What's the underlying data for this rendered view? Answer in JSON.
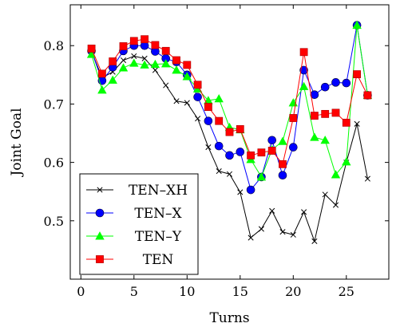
{
  "chart_data": {
    "type": "line",
    "xlabel": "Turns",
    "ylabel": "Joint Goal",
    "xlim": [
      -1,
      29
    ],
    "ylim": [
      0.4,
      0.87
    ],
    "xticks": [
      0,
      5,
      10,
      15,
      20,
      25
    ],
    "yticks": [
      0.5,
      0.6,
      0.7,
      0.8
    ],
    "xtick_labels": [
      "0",
      "5",
      "10",
      "15",
      "20",
      "25"
    ],
    "ytick_labels": [
      "0.5",
      "0.6",
      "0.7",
      "0.8"
    ],
    "grid": false,
    "legend_position": "bottom-left",
    "x": [
      1,
      2,
      3,
      4,
      5,
      6,
      7,
      8,
      9,
      10,
      11,
      12,
      13,
      14,
      15,
      16,
      17,
      18,
      19,
      20,
      21,
      22,
      23,
      24,
      25,
      26,
      27
    ],
    "series": [
      {
        "name": "TEN–XH",
        "color": "#000000",
        "marker": "x",
        "values": [
          0.79,
          0.745,
          0.755,
          0.775,
          0.782,
          0.778,
          0.758,
          0.732,
          0.705,
          0.702,
          0.675,
          0.626,
          0.585,
          0.58,
          0.549,
          0.471,
          0.486,
          0.517,
          0.481,
          0.476,
          0.515,
          0.465,
          0.545,
          0.527,
          0.6,
          0.666,
          0.572
        ]
      },
      {
        "name": "TEN–X",
        "color": "#0000ff",
        "marker": "circle",
        "values": [
          0.791,
          0.74,
          0.763,
          0.791,
          0.8,
          0.8,
          0.79,
          0.778,
          0.772,
          0.75,
          0.712,
          0.671,
          0.628,
          0.612,
          0.618,
          0.553,
          0.575,
          0.638,
          0.578,
          0.626,
          0.758,
          0.716,
          0.729,
          0.737,
          0.736,
          0.835,
          0.715
        ]
      },
      {
        "name": "TEN–Y",
        "color": "#00ff00",
        "marker": "triangle",
        "values": [
          0.785,
          0.724,
          0.741,
          0.762,
          0.77,
          0.767,
          0.768,
          0.769,
          0.758,
          0.747,
          0.726,
          0.706,
          0.709,
          0.66,
          0.656,
          0.605,
          0.575,
          0.622,
          0.636,
          0.702,
          0.73,
          0.643,
          0.638,
          0.579,
          0.601,
          0.835,
          0.715
        ]
      },
      {
        "name": "TEN",
        "color": "#ff0000",
        "marker": "square",
        "values": [
          0.795,
          0.752,
          0.773,
          0.799,
          0.808,
          0.811,
          0.801,
          0.791,
          0.775,
          0.767,
          0.733,
          0.695,
          0.671,
          0.652,
          0.657,
          0.612,
          0.617,
          0.62,
          0.597,
          0.676,
          0.789,
          0.68,
          0.683,
          0.685,
          0.668,
          0.751,
          0.715
        ]
      }
    ]
  }
}
